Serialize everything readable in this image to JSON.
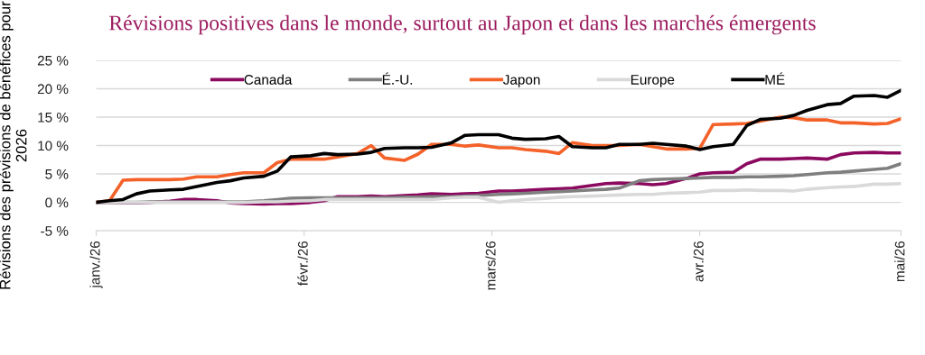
{
  "chart_data": {
    "type": "line",
    "title": "Révisions positives dans le monde, surtout au Japon et dans les marchés émergents",
    "ylabel": "Révisions des prévisions de bénéfices pour 2026",
    "x": [
      "2026-01-01",
      "2026-01-03",
      "2026-01-05",
      "2026-01-07",
      "2026-01-09",
      "2026-01-12",
      "2026-01-14",
      "2026-01-16",
      "2026-01-19",
      "2026-01-21",
      "2026-01-23",
      "2026-01-26",
      "2026-01-28",
      "2026-01-30",
      "2026-02-02",
      "2026-02-04",
      "2026-02-06",
      "2026-02-09",
      "2026-02-11",
      "2026-02-13",
      "2026-02-16",
      "2026-02-18",
      "2026-02-20",
      "2026-02-23",
      "2026-02-25",
      "2026-02-27",
      "2026-03-02",
      "2026-03-04",
      "2026-03-06",
      "2026-03-09",
      "2026-03-11",
      "2026-03-13",
      "2026-03-16",
      "2026-03-18",
      "2026-03-20",
      "2026-03-23",
      "2026-03-25",
      "2026-03-27",
      "2026-03-30",
      "2026-04-01",
      "2026-04-03",
      "2026-04-06",
      "2026-04-08",
      "2026-04-10",
      "2026-04-13",
      "2026-04-15",
      "2026-04-17",
      "2026-04-20",
      "2026-04-22",
      "2026-04-24",
      "2026-04-27",
      "2026-04-29",
      "2026-05-01"
    ],
    "series": [
      {
        "name": "Canada",
        "color": "#8b0a5f",
        "values": [
          0,
          0,
          -0.1,
          -0.1,
          0,
          0.2,
          0.5,
          0.5,
          0.3,
          -0.1,
          -0.2,
          -0.3,
          -0.2,
          -0.2,
          0,
          0.3,
          1.0,
          1.0,
          1.1,
          1.0,
          1.2,
          1.3,
          1.5,
          1.4,
          1.5,
          1.6,
          2.0,
          2.0,
          2.1,
          2.3,
          2.4,
          2.5,
          3.0,
          3.3,
          3.4,
          3.3,
          3.1,
          3.3,
          4.2,
          5.0,
          5.2,
          5.3,
          6.8,
          7.6,
          7.6,
          7.7,
          7.8,
          7.6,
          8.4,
          8.7,
          8.8,
          8.7,
          8.7
        ]
      },
      {
        "name": "É.-U.",
        "color": "#7f7f7f",
        "values": [
          0,
          0,
          0,
          0,
          0.1,
          0.1,
          0.1,
          0.1,
          0.1,
          0.1,
          0.1,
          0.3,
          0.5,
          0.7,
          0.8,
          0.8,
          0.8,
          0.8,
          0.8,
          0.8,
          0.9,
          0.9,
          1.0,
          1.0,
          1.1,
          1.2,
          1.4,
          1.5,
          1.6,
          1.8,
          1.9,
          2.0,
          2.2,
          2.3,
          2.5,
          3.8,
          4.0,
          4.1,
          4.2,
          4.3,
          4.4,
          4.4,
          4.5,
          4.5,
          4.6,
          4.7,
          4.9,
          5.2,
          5.3,
          5.5,
          5.8,
          6.0,
          6.8
        ]
      },
      {
        "name": "Japon",
        "color": "#f4622a",
        "values": [
          0,
          0.3,
          3.9,
          4.0,
          4.0,
          4.0,
          4.1,
          4.5,
          4.5,
          4.9,
          5.2,
          5.2,
          7.0,
          7.6,
          7.6,
          7.6,
          8.0,
          8.6,
          10.0,
          7.8,
          7.4,
          8.5,
          10.2,
          10.2,
          9.9,
          10.1,
          9.6,
          9.6,
          9.3,
          9.0,
          8.6,
          10.5,
          10.0,
          10.0,
          10.0,
          10.2,
          9.8,
          9.4,
          9.4,
          9.5,
          13.7,
          13.8,
          13.9,
          14.3,
          15.0,
          14.9,
          14.5,
          14.5,
          14.0,
          14.0,
          13.8,
          13.9,
          14.7
        ]
      },
      {
        "name": "Europe",
        "color": "#d9d9d9",
        "values": [
          0,
          0,
          0,
          0,
          0,
          0,
          0,
          0,
          0,
          0,
          0,
          0.1,
          0.1,
          0.2,
          0.3,
          0.5,
          0.5,
          0.5,
          0.5,
          0.5,
          0.5,
          0.5,
          0.5,
          0.8,
          0.9,
          0.9,
          0,
          0.3,
          0.5,
          0.7,
          0.9,
          1.0,
          1.1,
          1.2,
          1.3,
          1.4,
          1.4,
          1.6,
          1.7,
          1.8,
          2.1,
          2.1,
          2.2,
          2.1,
          2.1,
          2.0,
          2.3,
          2.6,
          2.7,
          2.8,
          3.2,
          3.2,
          3.3
        ]
      },
      {
        "name": "MÉ",
        "color": "#000000",
        "values": [
          0,
          0.3,
          0.5,
          1.5,
          2.0,
          2.2,
          2.3,
          2.8,
          3.5,
          3.8,
          4.3,
          4.6,
          5.5,
          8.0,
          8.2,
          8.6,
          8.4,
          8.5,
          8.8,
          9.5,
          9.6,
          9.6,
          9.7,
          10.5,
          11.8,
          11.9,
          11.9,
          11.3,
          11.1,
          11.2,
          11.6,
          9.8,
          9.6,
          9.6,
          10.2,
          10.2,
          10.4,
          10.2,
          9.9,
          9.3,
          9.8,
          10.2,
          13.5,
          14.6,
          14.8,
          15.3,
          16.2,
          17.2,
          17.4,
          18.7,
          18.8,
          18.5,
          19.7
        ]
      }
    ],
    "xlim": [
      "2026-01-01",
      "2026-05-01"
    ],
    "xticks": [
      {
        "value": "2026-01-01",
        "label": "janv./26"
      },
      {
        "value": "2026-02-01",
        "label": "févr./26"
      },
      {
        "value": "2026-03-01",
        "label": "mars/26"
      },
      {
        "value": "2026-04-01",
        "label": "avr./26"
      },
      {
        "value": "2026-05-01",
        "label": "mai/26"
      }
    ],
    "ylim": [
      -5,
      25
    ],
    "yticks": [
      {
        "value": -5,
        "label": "-5 %"
      },
      {
        "value": 0,
        "label": "0 %"
      },
      {
        "value": 5,
        "label": "5 %"
      },
      {
        "value": 10,
        "label": "10 %"
      },
      {
        "value": 15,
        "label": "15 %"
      },
      {
        "value": 20,
        "label": "20 %"
      },
      {
        "value": 25,
        "label": "25 %"
      }
    ],
    "grid": "y",
    "legend": "top",
    "line_style": "solid",
    "marker": "none"
  }
}
